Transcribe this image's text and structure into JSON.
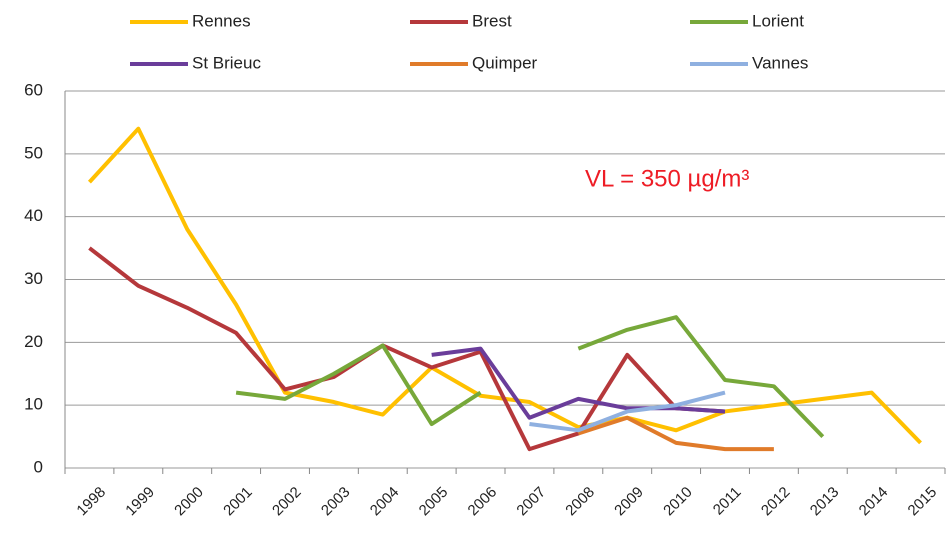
{
  "chart_data": {
    "type": "line",
    "categories": [
      "1998",
      "1999",
      "2000",
      "2001",
      "2002",
      "2003",
      "2004",
      "2005",
      "2006",
      "2007",
      "2008",
      "2009",
      "2010",
      "2011",
      "2012",
      "2013",
      "2014",
      "2015"
    ],
    "series": [
      {
        "name": "Rennes",
        "color": "#ffc000",
        "values": [
          45.5,
          54,
          38,
          26,
          12,
          10.5,
          8.5,
          16,
          11.5,
          10.5,
          6.5,
          8,
          6,
          9,
          10,
          11,
          12,
          4
        ]
      },
      {
        "name": "Brest",
        "color": "#b5383b",
        "values": [
          35,
          29,
          25.5,
          21.5,
          12.5,
          14.5,
          19.5,
          16,
          18.5,
          3,
          5.5,
          18,
          9.5,
          9,
          null,
          null,
          null,
          null
        ]
      },
      {
        "name": "Lorient",
        "color": "#77a83a",
        "values": [
          null,
          null,
          null,
          12,
          11,
          15,
          19.5,
          7,
          12,
          null,
          19,
          22,
          24,
          14,
          13,
          5,
          null,
          null
        ]
      },
      {
        "name": "St Brieuc",
        "color": "#6a3d9a",
        "values": [
          null,
          null,
          null,
          null,
          null,
          null,
          null,
          18,
          19,
          8,
          11,
          9.5,
          9.5,
          9,
          null,
          null,
          null,
          null
        ]
      },
      {
        "name": "Quimper",
        "color": "#e07b2a",
        "values": [
          null,
          null,
          null,
          null,
          null,
          null,
          null,
          null,
          null,
          null,
          5.5,
          8,
          4,
          3,
          3,
          null,
          null,
          null
        ]
      },
      {
        "name": "Vannes",
        "color": "#8fb0e0",
        "values": [
          null,
          null,
          null,
          null,
          null,
          null,
          null,
          null,
          null,
          7,
          6,
          9,
          10,
          12,
          null,
          null,
          null,
          null
        ]
      }
    ],
    "annotation": "VL = 350 µg/m³",
    "ylim": [
      0,
      60
    ],
    "yticks": [
      0,
      10,
      20,
      30,
      40,
      50,
      60
    ],
    "grid": true,
    "legend": "top"
  }
}
